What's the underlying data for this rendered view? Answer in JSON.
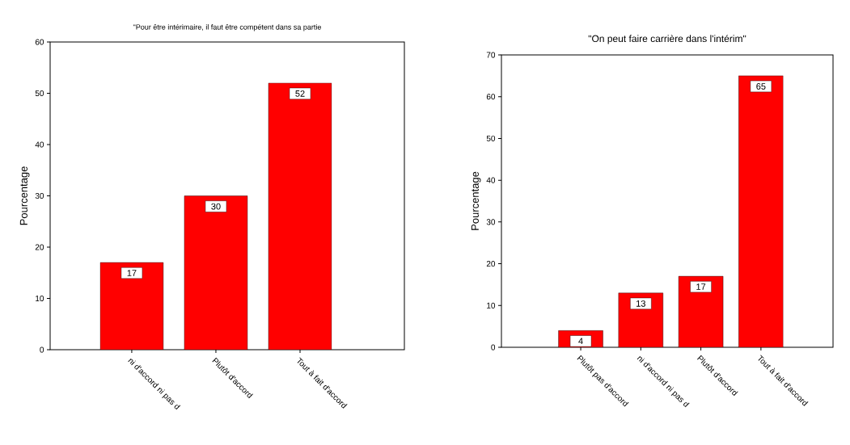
{
  "chart_data": [
    {
      "type": "bar",
      "title": "\"Pour être intérimaire, il faut être compétent dans sa partie",
      "ylabel": "Pourcentage",
      "categories": [
        "ni d'accord ni pas d",
        "Plutôt d'accord",
        "Tout à fait d'accord"
      ],
      "values": [
        17,
        30,
        52
      ],
      "color": "#ff0000",
      "ylim": [
        0,
        60
      ],
      "yticks": [
        0,
        10,
        20,
        30,
        40,
        50,
        60
      ],
      "data_labels": true
    },
    {
      "type": "bar",
      "title": "\"On peut faire carrière dans l'intérim\"",
      "ylabel": "Pourcentage",
      "categories": [
        "Plutôt pas d'accord",
        "ni d'accord ni pas d",
        "Plutôt d'accord",
        "Tout à fait d'accord"
      ],
      "values": [
        4,
        13,
        17,
        65
      ],
      "color": "#ff0000",
      "ylim": [
        0,
        70
      ],
      "yticks": [
        0,
        10,
        20,
        30,
        40,
        50,
        60,
        70
      ],
      "data_labels": true
    }
  ]
}
